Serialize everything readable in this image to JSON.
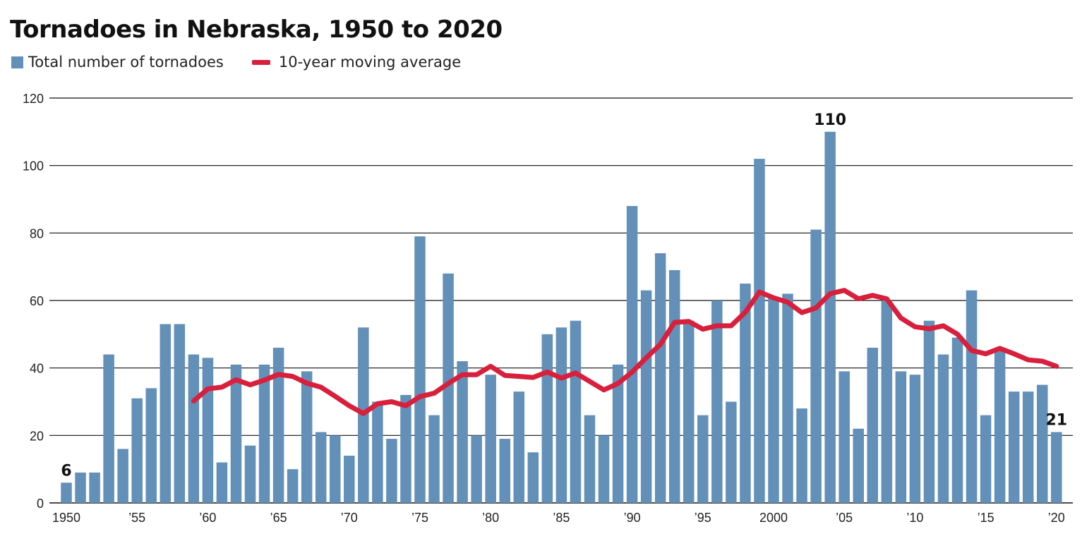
{
  "title": "Tornadoes in Nebraska, 1950 to 2020",
  "legend": {
    "bars_label": "Total number of tornadoes",
    "line_label": "10-year moving average"
  },
  "colors": {
    "bars": "#6390b8",
    "line": "#d81f3b",
    "grid": "#111111"
  },
  "chart_data": {
    "type": "bar",
    "title": "Tornadoes in Nebraska, 1950 to 2020",
    "xlabel": "",
    "ylabel": "",
    "ylim": [
      0,
      120
    ],
    "yticks": [
      0,
      20,
      40,
      60,
      80,
      100,
      120
    ],
    "grid": true,
    "x": [
      1950,
      1951,
      1952,
      1953,
      1954,
      1955,
      1956,
      1957,
      1958,
      1959,
      1960,
      1961,
      1962,
      1963,
      1964,
      1965,
      1966,
      1967,
      1968,
      1969,
      1970,
      1971,
      1972,
      1973,
      1974,
      1975,
      1976,
      1977,
      1978,
      1979,
      1980,
      1981,
      1982,
      1983,
      1984,
      1985,
      1986,
      1987,
      1988,
      1989,
      1990,
      1991,
      1992,
      1993,
      1994,
      1995,
      1996,
      1997,
      1998,
      1999,
      2000,
      2001,
      2002,
      2003,
      2004,
      2005,
      2006,
      2007,
      2008,
      2009,
      2010,
      2011,
      2012,
      2013,
      2014,
      2015,
      2016,
      2017,
      2018,
      2019,
      2020
    ],
    "series": [
      {
        "name": "Total number of tornadoes",
        "type": "bar",
        "values": [
          6,
          9,
          9,
          44,
          16,
          31,
          34,
          53,
          53,
          44,
          43,
          12,
          41,
          17,
          41,
          46,
          10,
          39,
          21,
          20,
          14,
          52,
          30,
          19,
          32,
          79,
          26,
          68,
          42,
          20,
          38,
          19,
          33,
          15,
          50,
          52,
          54,
          26,
          20,
          41,
          88,
          63,
          74,
          69,
          54,
          26,
          60,
          30,
          65,
          102,
          61,
          62,
          28,
          81,
          110,
          39,
          22,
          46,
          60,
          39,
          38,
          54,
          44,
          49,
          63,
          26,
          46,
          33,
          33,
          35,
          21
        ]
      },
      {
        "name": "10-year moving average",
        "type": "line",
        "x": [
          1959,
          1960,
          1961,
          1962,
          1963,
          1964,
          1965,
          1966,
          1967,
          1968,
          1969,
          1970,
          1971,
          1972,
          1973,
          1974,
          1975,
          1976,
          1977,
          1978,
          1979,
          1980,
          1981,
          1982,
          1983,
          1984,
          1985,
          1986,
          1987,
          1988,
          1989,
          1990,
          1991,
          1992,
          1993,
          1994,
          1995,
          1996,
          1997,
          1998,
          1999,
          2000,
          2001,
          2002,
          2003,
          2004,
          2005,
          2006,
          2007,
          2008,
          2009,
          2010,
          2011,
          2012,
          2013,
          2014,
          2015,
          2016,
          2017,
          2018,
          2019,
          2020
        ],
        "values": [
          30.2,
          33.8,
          34.3,
          36.5,
          35.0,
          36.4,
          38.1,
          37.5,
          35.5,
          34.3,
          31.6,
          28.8,
          26.5,
          29.4,
          30.0,
          28.8,
          31.5,
          32.5,
          35.4,
          38.0,
          38.0,
          40.5,
          37.8,
          37.5,
          37.2,
          38.8,
          37.0,
          38.5,
          36.0,
          33.5,
          35.4,
          38.8,
          43.0,
          47.0,
          53.5,
          53.8,
          51.5,
          52.5,
          52.5,
          56.5,
          62.5,
          60.8,
          59.5,
          56.4,
          57.8,
          62.0,
          63.0,
          60.5,
          61.5,
          60.5,
          54.8,
          52.2,
          51.6,
          52.5,
          50.0,
          45.2,
          44.2,
          45.8,
          44.2,
          42.4,
          42.0,
          40.5
        ]
      }
    ],
    "x_tick_labels": [
      {
        "year": 1950,
        "label": "1950"
      },
      {
        "year": 1955,
        "label": "’55"
      },
      {
        "year": 1960,
        "label": "’60"
      },
      {
        "year": 1965,
        "label": "’65"
      },
      {
        "year": 1970,
        "label": "’70"
      },
      {
        "year": 1975,
        "label": "’75"
      },
      {
        "year": 1980,
        "label": "’80"
      },
      {
        "year": 1985,
        "label": "’85"
      },
      {
        "year": 1990,
        "label": "’90"
      },
      {
        "year": 1995,
        "label": "’95"
      },
      {
        "year": 2000,
        "label": "2000"
      },
      {
        "year": 2005,
        "label": "’05"
      },
      {
        "year": 2010,
        "label": "’10"
      },
      {
        "year": 2015,
        "label": "’15"
      },
      {
        "year": 2020,
        "label": "’20"
      }
    ],
    "annotations": [
      {
        "year": 1950,
        "text": "6"
      },
      {
        "year": 2004,
        "text": "110"
      },
      {
        "year": 2020,
        "text": "21"
      }
    ]
  }
}
